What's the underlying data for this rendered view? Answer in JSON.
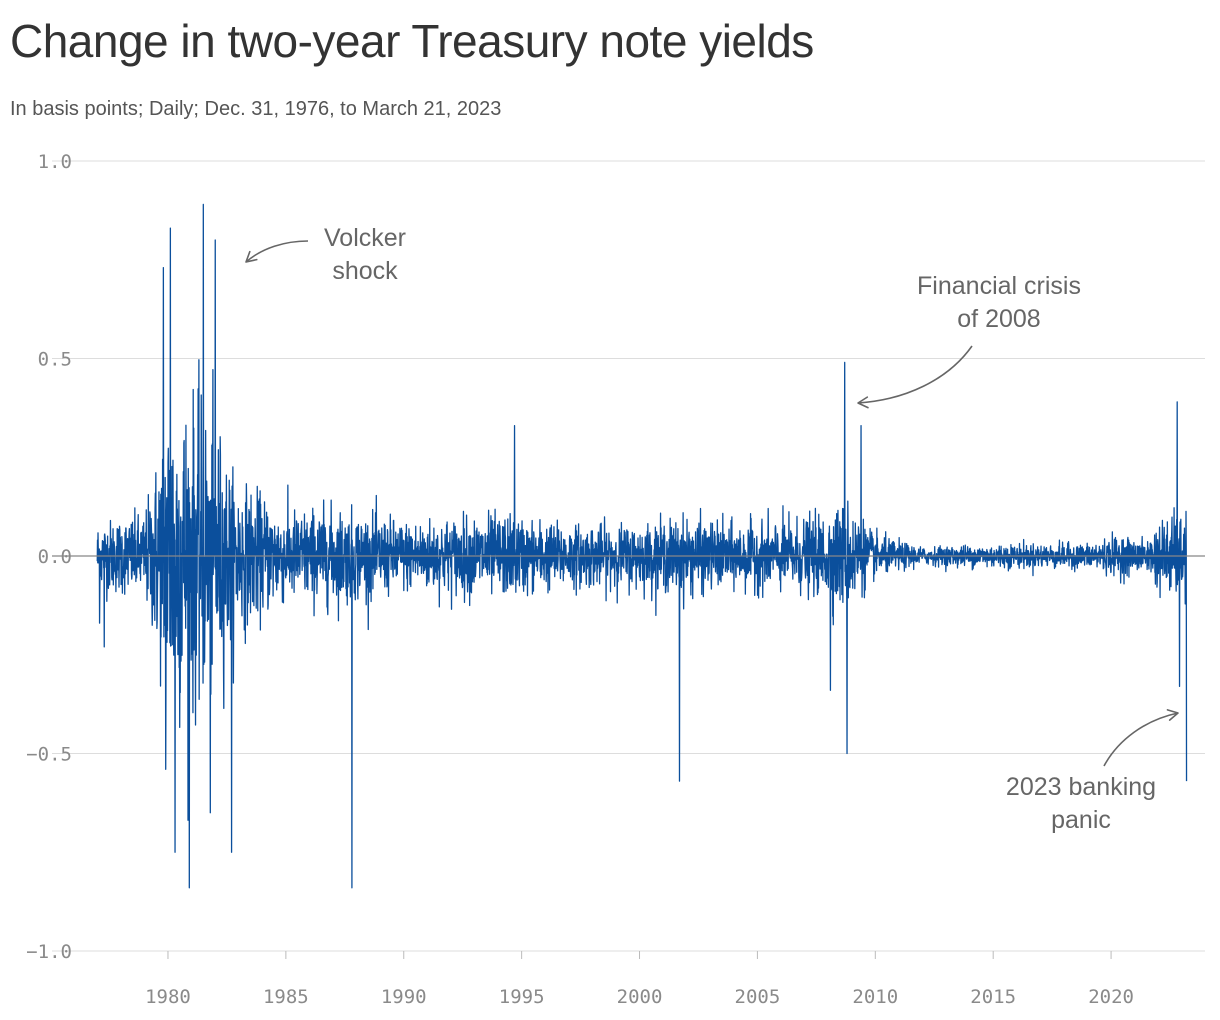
{
  "header": {
    "title": "Change in two-year Treasury note yields",
    "subtitle": "In basis points; Daily; Dec. 31, 1976, to March 21, 2023"
  },
  "colors": {
    "series": "#0b4f9c",
    "grid": "#dddddd",
    "zero_line": "#888888",
    "tick_text": "#8a8a8a",
    "annotation": "#666666"
  },
  "chart_data": {
    "type": "line",
    "title": "Change in two-year Treasury note yields",
    "subtitle": "In basis points; Daily; Dec. 31, 1976, to March 21, 2023",
    "xlabel": "",
    "ylabel": "",
    "xlim": [
      1976.99,
      2023.22
    ],
    "ylim": [
      -1.0,
      1.0
    ],
    "x_ticks": [
      1980,
      1985,
      1990,
      1995,
      2000,
      2005,
      2010,
      2015,
      2020
    ],
    "y_ticks": [
      1.0,
      0.5,
      0.0,
      -0.5,
      -1.0
    ],
    "y_tick_labels": [
      "1.0",
      "0.5",
      "0.0",
      "−0.5",
      "−1.0"
    ],
    "grid": "horizontal",
    "legend": "none",
    "series": [
      {
        "values_note": "daily change; envelope of amplitude by period with notable spikes",
        "envelope": [
          [
            1977.0,
            0.1
          ],
          [
            1979.0,
            0.12
          ],
          [
            1979.6,
            0.3
          ],
          [
            1980.0,
            0.5
          ],
          [
            1981.0,
            0.45
          ],
          [
            1982.0,
            0.4
          ],
          [
            1982.8,
            0.22
          ],
          [
            1985.0,
            0.13
          ],
          [
            1987.0,
            0.14
          ],
          [
            1990.0,
            0.1
          ],
          [
            1992.0,
            0.11
          ],
          [
            1994.0,
            0.12
          ],
          [
            1997.0,
            0.09
          ],
          [
            2000.0,
            0.09
          ],
          [
            2002.0,
            0.11
          ],
          [
            2004.0,
            0.09
          ],
          [
            2007.5,
            0.11
          ],
          [
            2008.8,
            0.16
          ],
          [
            2010.0,
            0.06
          ],
          [
            2012.0,
            0.025
          ],
          [
            2015.0,
            0.035
          ],
          [
            2019.0,
            0.035
          ],
          [
            2020.3,
            0.06
          ],
          [
            2021.5,
            0.04
          ],
          [
            2022.0,
            0.1
          ],
          [
            2023.2,
            0.13
          ]
        ],
        "spikes": [
          {
            "x": 1977.1,
            "y": -0.17
          },
          {
            "x": 1977.3,
            "y": -0.23
          },
          {
            "x": 1979.8,
            "y": 0.73
          },
          {
            "x": 1979.9,
            "y": -0.54
          },
          {
            "x": 1980.1,
            "y": 0.83
          },
          {
            "x": 1980.3,
            "y": -0.75
          },
          {
            "x": 1980.9,
            "y": -0.84
          },
          {
            "x": 1981.5,
            "y": 0.89
          },
          {
            "x": 1981.8,
            "y": -0.65
          },
          {
            "x": 1982.0,
            "y": 0.8
          },
          {
            "x": 1982.7,
            "y": -0.75
          },
          {
            "x": 1987.8,
            "y": -0.84
          },
          {
            "x": 1994.7,
            "y": 0.33
          },
          {
            "x": 2001.7,
            "y": -0.57
          },
          {
            "x": 2008.1,
            "y": -0.34
          },
          {
            "x": 2008.7,
            "y": 0.49
          },
          {
            "x": 2008.8,
            "y": -0.5
          },
          {
            "x": 2009.4,
            "y": 0.33
          },
          {
            "x": 2022.8,
            "y": 0.39
          },
          {
            "x": 2022.9,
            "y": -0.33
          },
          {
            "x": 2023.2,
            "y": -0.57
          }
        ]
      }
    ],
    "annotations": [
      {
        "text": "Volcker shock",
        "lines": [
          "Volcker",
          "shock"
        ],
        "target_x": 1982.2,
        "target_y": 0.74
      },
      {
        "text": "Financial crisis of 2008",
        "lines": [
          "Financial crisis",
          "of 2008"
        ],
        "target_x": 2009.2,
        "target_y": 0.38
      },
      {
        "text": "2023 banking panic",
        "lines": [
          "2023 banking",
          "panic"
        ],
        "target_x": 2023.1,
        "target_y": -0.4
      }
    ]
  }
}
